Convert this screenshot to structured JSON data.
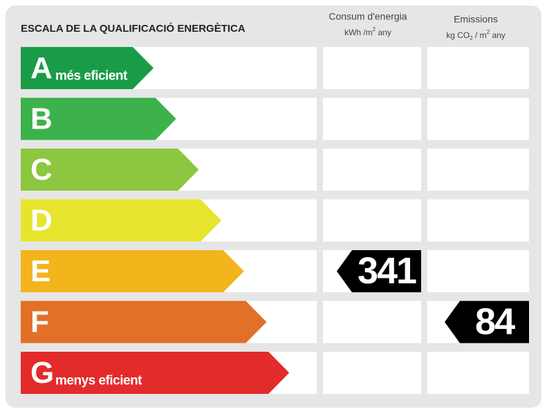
{
  "header": {
    "title": "ESCALA DE LA QUALIFICACIÓ ENERGÈTICA",
    "consumption": {
      "label": "Consum d'energia",
      "unit": [
        "kWh /m",
        "2",
        " any"
      ]
    },
    "emissions": {
      "label": "Emissions",
      "unit": [
        "kg CO",
        "2",
        " / m",
        "2",
        " any"
      ]
    }
  },
  "rows": [
    {
      "letter": "A",
      "color": "#1a9b48",
      "note": "més eficient"
    },
    {
      "letter": "B",
      "color": "#3db14b"
    },
    {
      "letter": "C",
      "color": "#8dc63f"
    },
    {
      "letter": "D",
      "color": "#e6e42c"
    },
    {
      "letter": "E",
      "color": "#f2b51c",
      "consumption": 341
    },
    {
      "letter": "F",
      "color": "#e27027",
      "emissions": 84
    },
    {
      "letter": "G",
      "color": "#e32b2b",
      "note": "menys eficient"
    }
  ]
}
